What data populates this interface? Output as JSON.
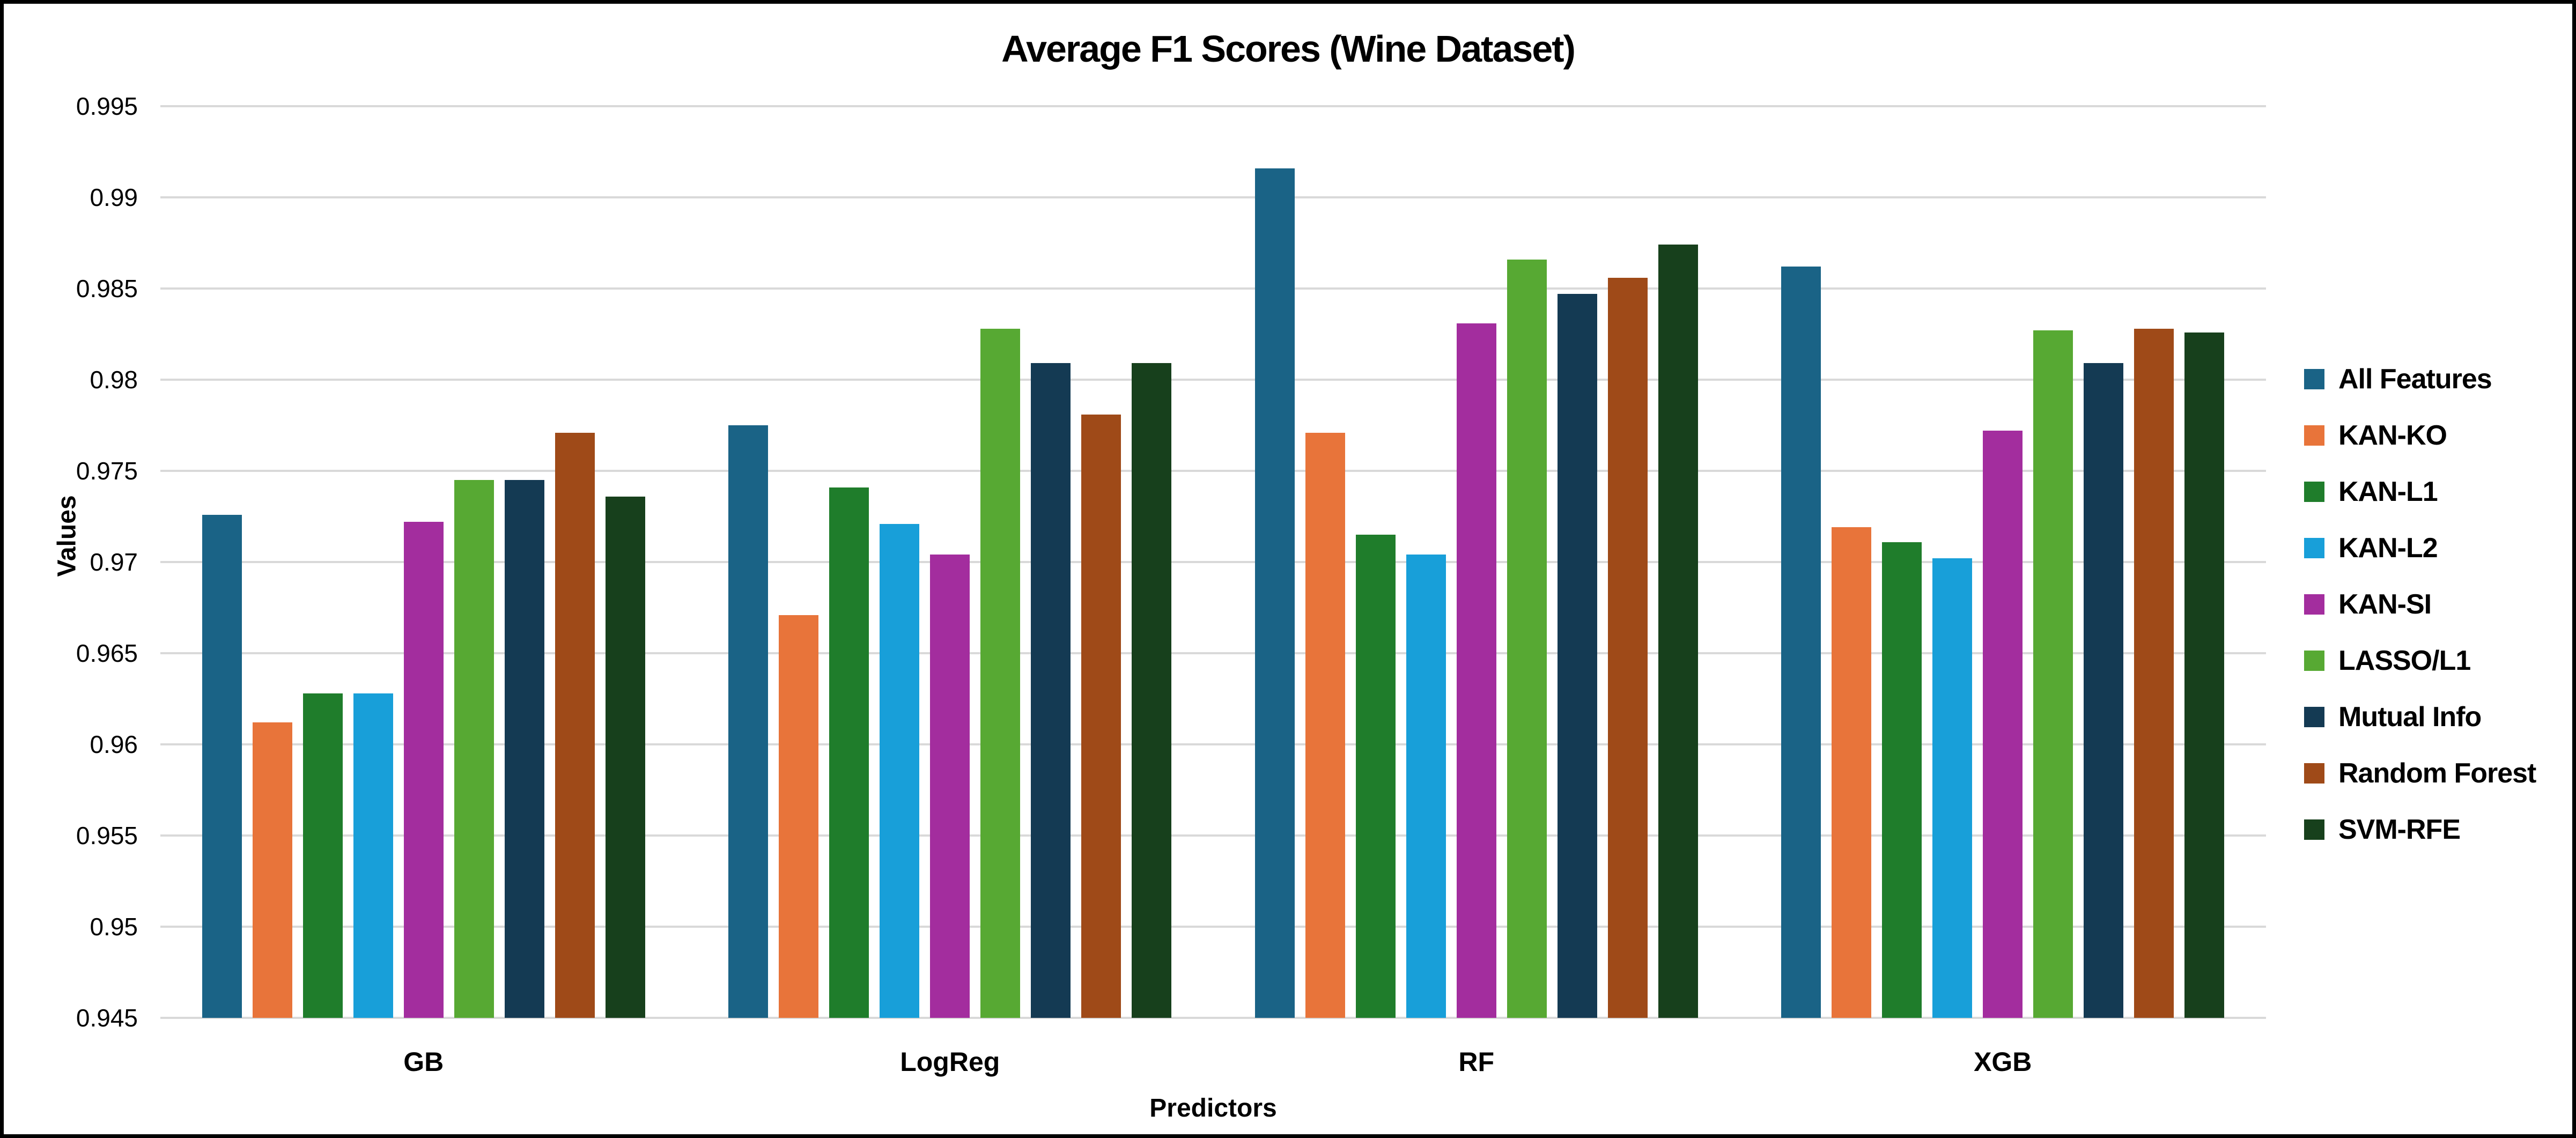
{
  "figure": {
    "background_color": "#ffffff",
    "border_color": "#000000",
    "gridline_color": "#d9d9d9"
  },
  "chart_data": {
    "type": "bar",
    "title": "Average F1 Scores (Wine Dataset)",
    "xlabel": "Predictors",
    "ylabel": "Values",
    "categories": [
      "GB",
      "LogReg",
      "RF",
      "XGB"
    ],
    "series": [
      {
        "name": "All Features",
        "color": "#1a6386",
        "values": [
          0.9726,
          0.9775,
          0.9916,
          0.9862
        ]
      },
      {
        "name": "KAN-KO",
        "color": "#e8743a",
        "values": [
          0.9612,
          0.9671,
          0.9771,
          0.9719
        ]
      },
      {
        "name": "KAN-L1",
        "color": "#1f7d2b",
        "values": [
          0.9628,
          0.9741,
          0.9715,
          0.9711
        ]
      },
      {
        "name": "KAN-L2",
        "color": "#189fd9",
        "values": [
          0.9628,
          0.9721,
          0.9704,
          0.9702
        ]
      },
      {
        "name": "KAN-SI",
        "color": "#a32d9e",
        "values": [
          0.9722,
          0.9704,
          0.9831,
          0.9772
        ]
      },
      {
        "name": "LASSO/L1",
        "color": "#57a933",
        "values": [
          0.9745,
          0.9828,
          0.9866,
          0.9827
        ]
      },
      {
        "name": "Mutual Info",
        "color": "#143a53",
        "values": [
          0.9745,
          0.9809,
          0.9847,
          0.9809
        ]
      },
      {
        "name": "Random Forest",
        "color": "#9f4a18",
        "values": [
          0.9771,
          0.9781,
          0.9856,
          0.9828
        ]
      },
      {
        "name": "SVM-RFE",
        "color": "#17401c",
        "values": [
          0.9736,
          0.9809,
          0.9874,
          0.9826
        ]
      }
    ],
    "ylim": [
      0.945,
      0.995
    ],
    "ytick_step": 0.005,
    "yticks": [
      "0.945",
      "0.95",
      "0.955",
      "0.96",
      "0.965",
      "0.97",
      "0.975",
      "0.98",
      "0.985",
      "0.99",
      "0.995"
    ],
    "grid": "horizontal",
    "legend_position": "right"
  }
}
